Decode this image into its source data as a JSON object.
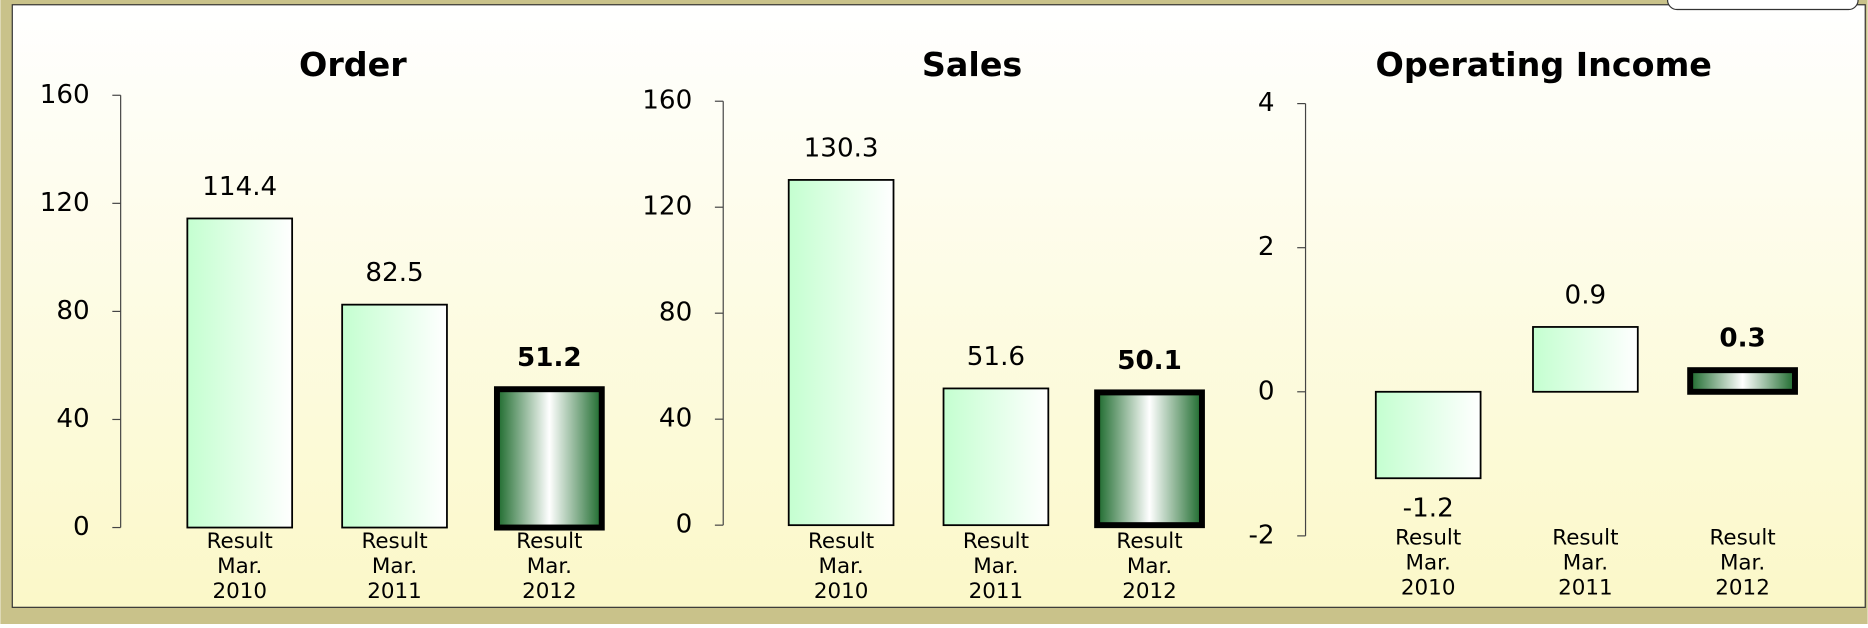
{
  "chart_data": [
    {
      "type": "bar",
      "title": "Order",
      "categories": [
        [
          "Result",
          "Mar.",
          "2010"
        ],
        [
          "Result",
          "Mar.",
          "2011"
        ],
        [
          "Result",
          "Mar.",
          "2012"
        ]
      ],
      "values": [
        114.4,
        82.5,
        51.2
      ],
      "highlight": [
        false,
        false,
        true
      ],
      "ylim": [
        0,
        160
      ],
      "yticks": [
        0,
        40,
        80,
        120,
        160
      ]
    },
    {
      "type": "bar",
      "title": "Sales",
      "categories": [
        [
          "Result",
          "Mar.",
          "2010"
        ],
        [
          "Result",
          "Mar.",
          "2011"
        ],
        [
          "Result",
          "Mar.",
          "2012"
        ]
      ],
      "values": [
        130.3,
        51.6,
        50.1
      ],
      "highlight": [
        false,
        false,
        true
      ],
      "ylim": [
        0,
        160
      ],
      "yticks": [
        0,
        40,
        80,
        120,
        160
      ]
    },
    {
      "type": "bar",
      "title": "Operating Income",
      "categories": [
        [
          "Result",
          "Mar.",
          "2010"
        ],
        [
          "Result",
          "Mar.",
          "2011"
        ],
        [
          "Result",
          "Mar.",
          "2012"
        ]
      ],
      "values": [
        -1.2,
        0.9,
        0.3
      ],
      "highlight": [
        false,
        false,
        true
      ],
      "ylim": [
        -2,
        4
      ],
      "yticks": [
        -2,
        0,
        2,
        4
      ]
    }
  ]
}
